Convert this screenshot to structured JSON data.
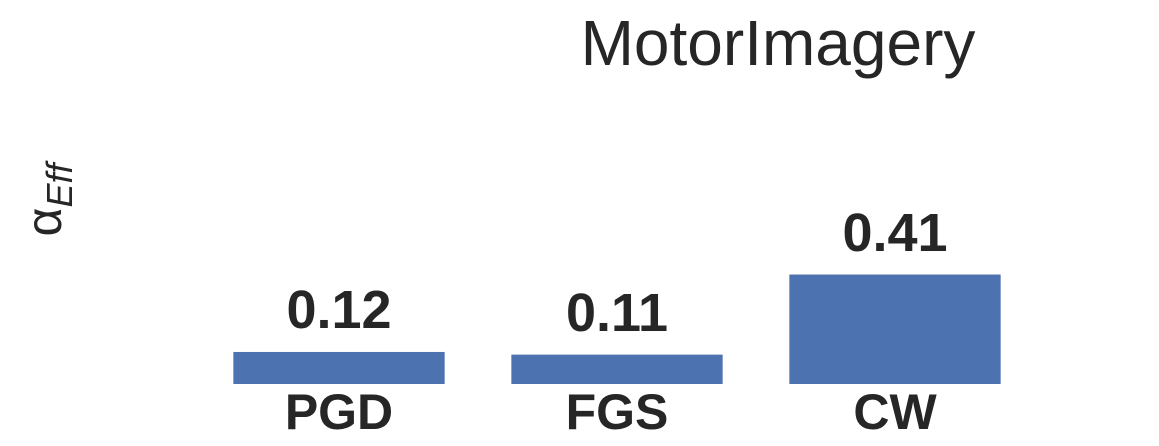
{
  "chart_data": {
    "type": "bar",
    "title": "MotorImagery",
    "ylabel": "α",
    "ylabel_subscript": "Eff",
    "categories": [
      "PGD",
      "FGS",
      "CW"
    ],
    "values": [
      0.12,
      0.11,
      0.41
    ],
    "color": "#4c72b0",
    "ylim": [
      0,
      1.2
    ]
  }
}
